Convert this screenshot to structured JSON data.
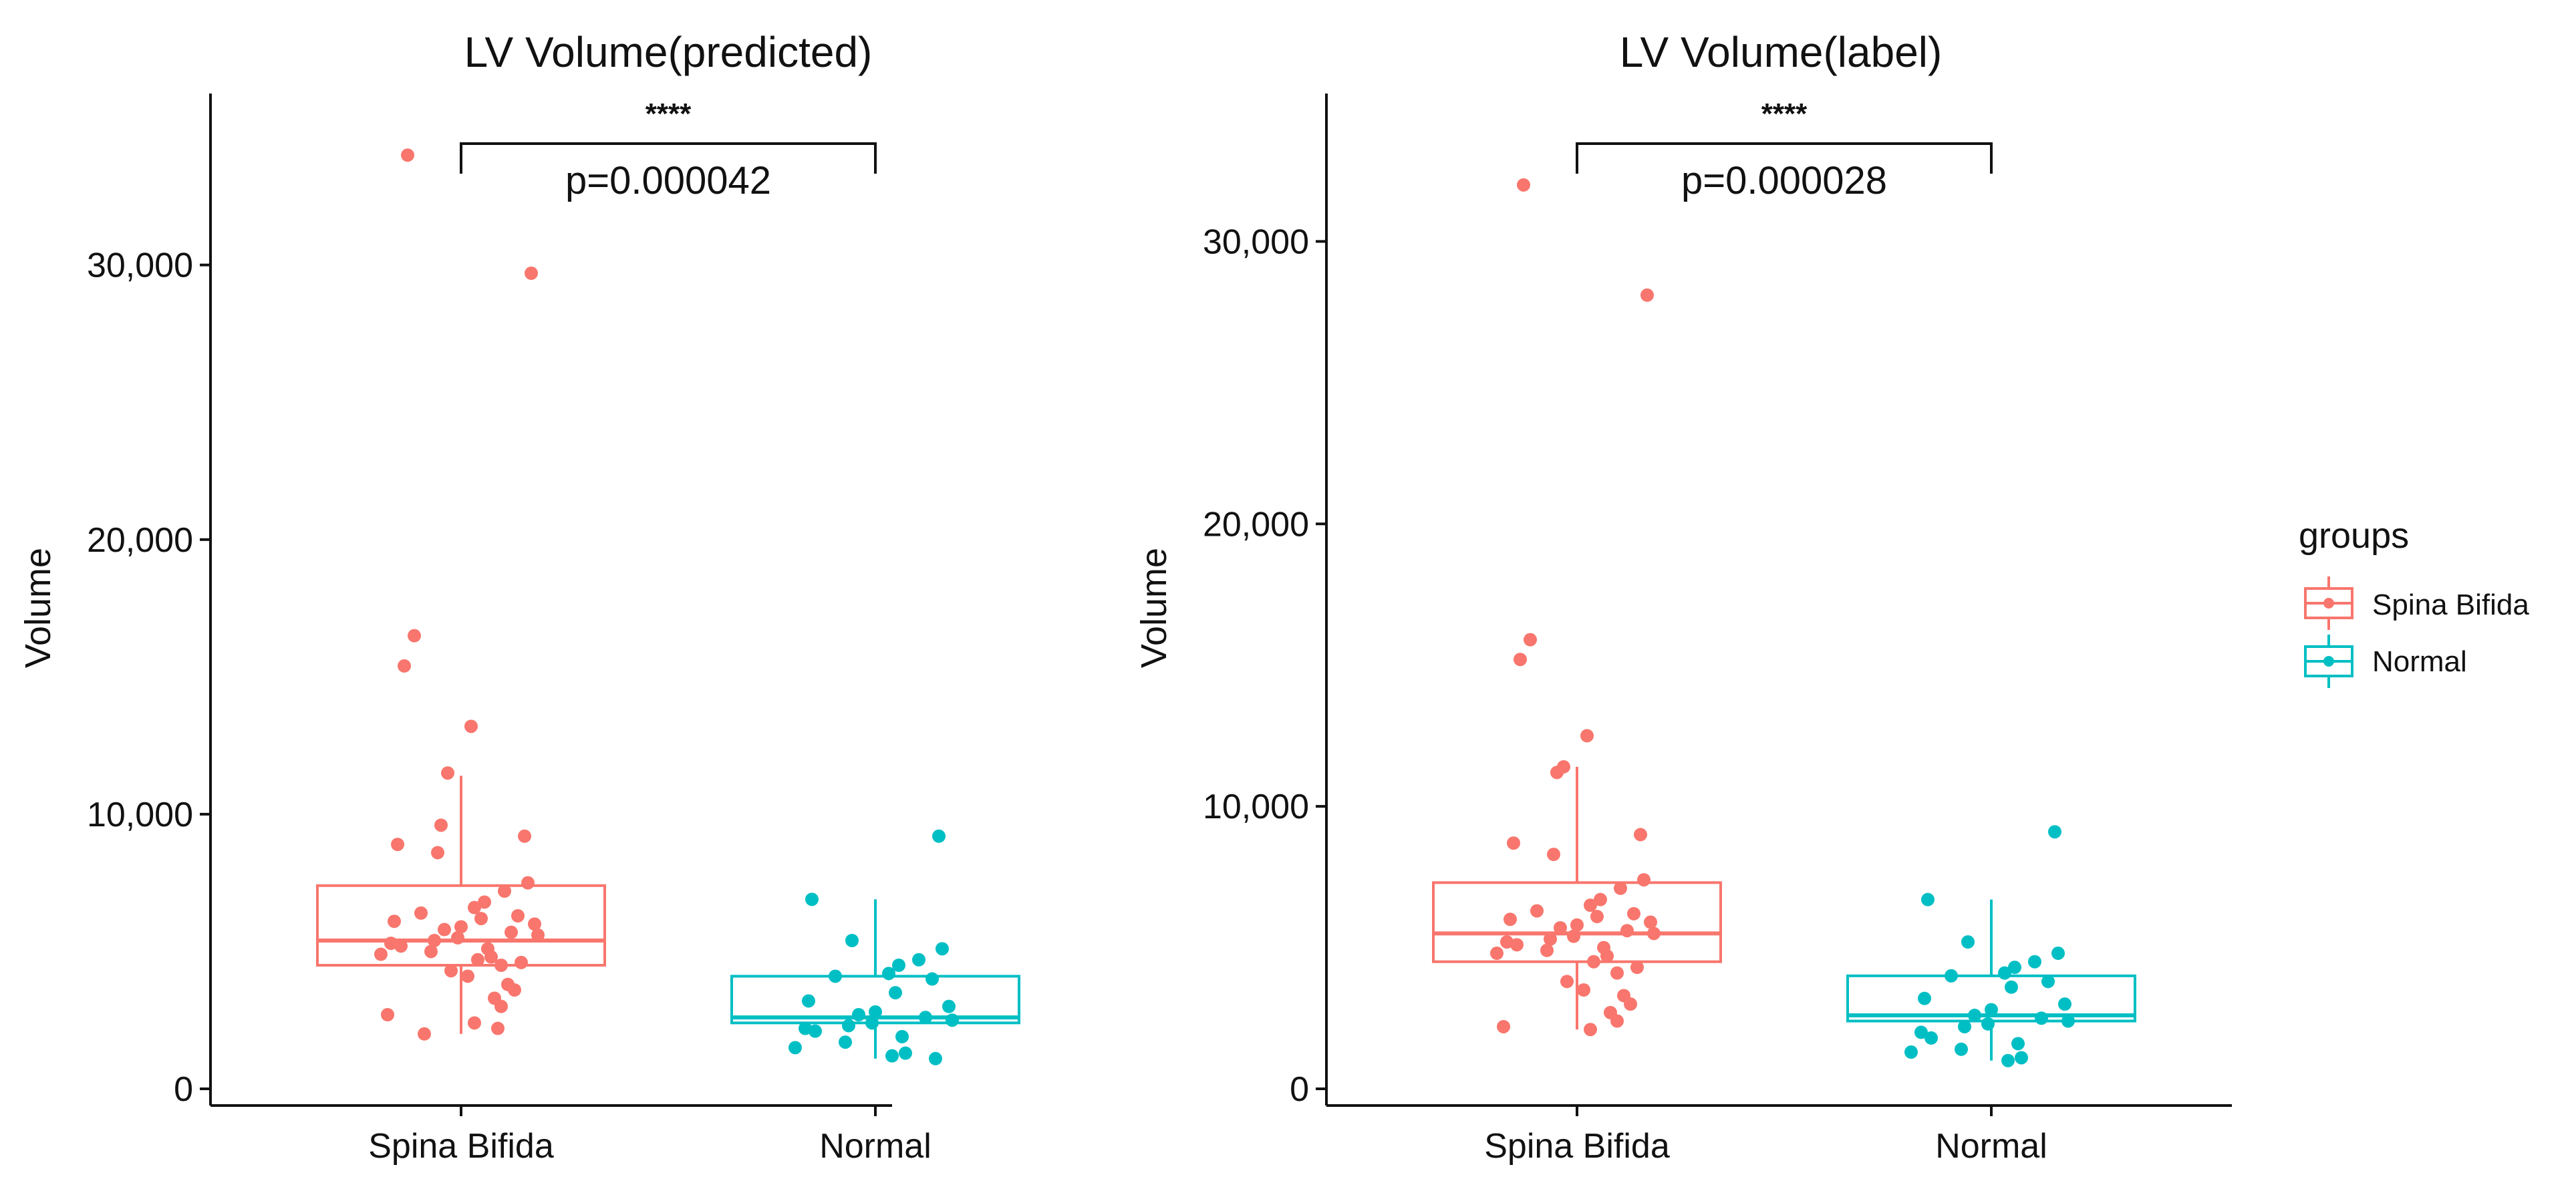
{
  "chart_data": [
    {
      "type": "box",
      "title": "LV Volume(predicted)",
      "xlabel": "",
      "ylabel": "Volume",
      "ylim": [
        0,
        36000
      ],
      "yticks": [
        0,
        10000,
        20000,
        30000
      ],
      "ytick_labels": [
        "0",
        "10,000",
        "20,000",
        "30,000"
      ],
      "categories": [
        "Spina Bifida",
        "Normal"
      ],
      "comparison": {
        "stars": "****",
        "p_label": "p=0.000042"
      },
      "groups": [
        {
          "name": "Spina Bifida",
          "box": {
            "whisker_low": 2000,
            "q1": 4500,
            "median": 5400,
            "q3": 7400,
            "whisker_high": 11400
          },
          "points": [
            34000,
            29700,
            16500,
            15400,
            13200,
            11500,
            9600,
            9200,
            8900,
            8600,
            7500,
            7200,
            6800,
            6600,
            6400,
            6300,
            6200,
            6100,
            6000,
            5900,
            5800,
            5700,
            5600,
            5500,
            5400,
            5300,
            5200,
            5100,
            5000,
            4900,
            4800,
            4700,
            4600,
            4500,
            4300,
            4100,
            3800,
            3600,
            3300,
            3000,
            2700,
            2400,
            2200,
            2000
          ]
        },
        {
          "name": "Normal",
          "box": {
            "whisker_low": 1100,
            "q1": 2400,
            "median": 2600,
            "q3": 4100,
            "whisker_high": 6900
          },
          "points": [
            9200,
            6900,
            5400,
            5100,
            4700,
            4500,
            4200,
            4100,
            4000,
            3500,
            3200,
            3000,
            2800,
            2700,
            2600,
            2500,
            2400,
            2300,
            2200,
            2100,
            1900,
            1700,
            1500,
            1300,
            1200,
            1100
          ]
        }
      ]
    },
    {
      "type": "box",
      "title": "LV Volume(label)",
      "xlabel": "",
      "ylabel": "Volume",
      "ylim": [
        0,
        35000
      ],
      "yticks": [
        0,
        10000,
        20000,
        30000
      ],
      "ytick_labels": [
        "0",
        "10,000",
        "20,000",
        "30,000"
      ],
      "categories": [
        "Spina Bifida",
        "Normal"
      ],
      "comparison": {
        "stars": "****",
        "p_label": "p=0.000028"
      },
      "groups": [
        {
          "name": "Spina Bifida",
          "box": {
            "whisker_low": 2100,
            "q1": 4500,
            "median": 5500,
            "q3": 7300,
            "whisker_high": 11400
          },
          "points": [
            32000,
            28100,
            15900,
            15200,
            12500,
            11400,
            11200,
            9000,
            8700,
            8300,
            7400,
            7100,
            6700,
            6500,
            6300,
            6200,
            6100,
            6000,
            5900,
            5800,
            5700,
            5600,
            5500,
            5400,
            5300,
            5200,
            5100,
            5000,
            4900,
            4800,
            4700,
            4500,
            4300,
            4100,
            3800,
            3500,
            3300,
            3000,
            2700,
            2400,
            2200,
            2100
          ]
        },
        {
          "name": "Normal",
          "box": {
            "whisker_low": 1000,
            "q1": 2400,
            "median": 2600,
            "q3": 4000,
            "whisker_high": 6700
          },
          "points": [
            9100,
            6700,
            5200,
            4800,
            4500,
            4300,
            4100,
            4000,
            3800,
            3600,
            3200,
            3000,
            2800,
            2600,
            2500,
            2400,
            2300,
            2200,
            2000,
            1800,
            1600,
            1400,
            1300,
            1100,
            1000
          ]
        }
      ]
    }
  ],
  "legend": {
    "title": "groups",
    "items": [
      {
        "name": "Spina Bifida",
        "color": "#F8766D"
      },
      {
        "name": "Normal",
        "color": "#00BFC4"
      }
    ]
  },
  "colors": {
    "Spina Bifida": "#F8766D",
    "Normal": "#00BFC4",
    "axis": "#111111"
  }
}
